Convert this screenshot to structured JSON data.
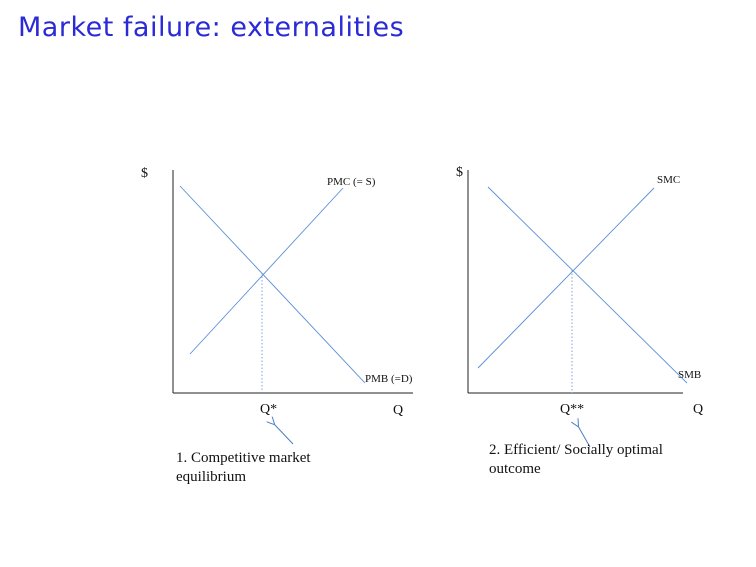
{
  "title": "Market failure: externalities",
  "colors": {
    "title": "#2a2ad6",
    "curve": "#5b8fd6",
    "axis": "#222222",
    "arrow": "#4a7fc4"
  },
  "panel1": {
    "y_axis_label": "$",
    "x_axis_label": "Q",
    "supply_label": "PMC (= S)",
    "demand_label": "PMB (=D)",
    "equilibrium_label": "Q*",
    "caption_line1": "1. Competitive market",
    "caption_line2": "equilibrium"
  },
  "panel2": {
    "y_axis_label": "$",
    "x_axis_label": "Q",
    "supply_label": "SMC",
    "demand_label": "SMB",
    "equilibrium_label": "Q**",
    "caption_line1": "2. Efficient/ Socially optimal",
    "caption_line2": "outcome"
  }
}
